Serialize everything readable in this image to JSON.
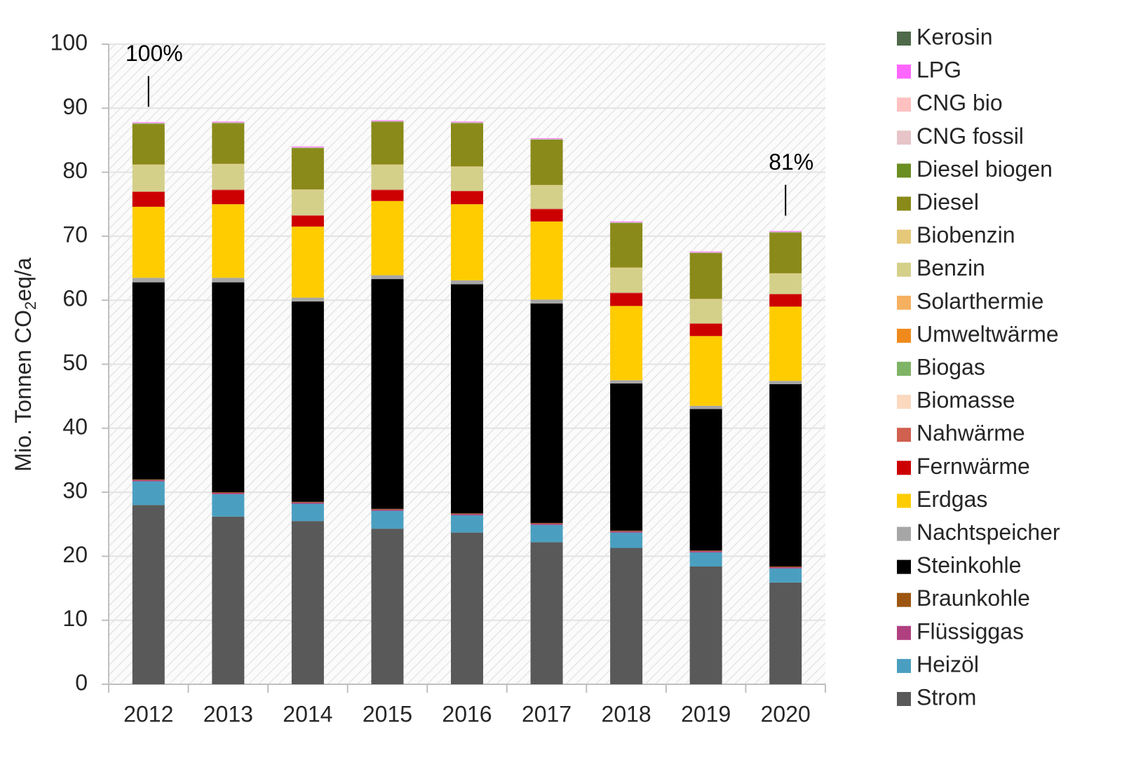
{
  "chart_data": {
    "type": "stacked_bar",
    "y_label": [
      "Mio. Tonnen CO",
      "2",
      "eq/a"
    ],
    "categories": [
      "2012",
      "2013",
      "2014",
      "2015",
      "2016",
      "2017",
      "2018",
      "2019",
      "2020"
    ],
    "ylim": [
      0,
      100
    ],
    "yticks": [
      0,
      10,
      20,
      30,
      40,
      50,
      60,
      70,
      80,
      90,
      100
    ],
    "grid": true,
    "legend": "right",
    "series": [
      {
        "name": "Strom",
        "color": "#595959",
        "values": [
          28.0,
          26.2,
          25.5,
          24.3,
          23.7,
          22.2,
          21.3,
          18.4,
          15.9
        ]
      },
      {
        "name": "Heizöl",
        "color": "#4a9fc0",
        "values": [
          3.7,
          3.5,
          2.7,
          2.8,
          2.7,
          2.7,
          2.4,
          2.2,
          2.2
        ]
      },
      {
        "name": "Flüssiggas",
        "color": "#b0407f",
        "values": [
          0.2,
          0.2,
          0.2,
          0.2,
          0.2,
          0.2,
          0.2,
          0.2,
          0.2
        ]
      },
      {
        "name": "Braunkohle",
        "color": "#9c5610",
        "values": [
          0.1,
          0.1,
          0.1,
          0.1,
          0.1,
          0.1,
          0.1,
          0.1,
          0.1
        ]
      },
      {
        "name": "Steinkohle",
        "color": "#000000",
        "values": [
          30.8,
          32.8,
          31.3,
          35.9,
          35.8,
          34.3,
          23.0,
          22.1,
          28.5
        ]
      },
      {
        "name": "Nachtspeicher",
        "color": "#a6a6a6",
        "values": [
          0.7,
          0.7,
          0.6,
          0.6,
          0.6,
          0.6,
          0.5,
          0.5,
          0.5
        ]
      },
      {
        "name": "Erdgas",
        "color": "#ffcc00",
        "values": [
          11.1,
          11.5,
          11.1,
          11.6,
          11.9,
          12.2,
          11.6,
          10.9,
          11.6
        ]
      },
      {
        "name": "Fernwärme",
        "color": "#cc0000",
        "values": [
          2.3,
          2.2,
          1.7,
          1.7,
          2.0,
          1.9,
          2.0,
          1.9,
          1.9
        ]
      },
      {
        "name": "Nahwärme",
        "color": "#d0604f",
        "values": [
          0.1,
          0.1,
          0.1,
          0.1,
          0.1,
          0.1,
          0.1,
          0.1,
          0.1
        ]
      },
      {
        "name": "Biomasse",
        "color": "#fbd9bf",
        "values": [
          0,
          0,
          0,
          0,
          0,
          0,
          0,
          0,
          0
        ]
      },
      {
        "name": "Biogas",
        "color": "#7fb466",
        "values": [
          0,
          0,
          0,
          0,
          0,
          0,
          0,
          0,
          0
        ]
      },
      {
        "name": "Umweltwärme",
        "color": "#f08a1c",
        "values": [
          0,
          0,
          0,
          0,
          0,
          0,
          0,
          0,
          0
        ]
      },
      {
        "name": "Solarthermie",
        "color": "#f5b060",
        "values": [
          0,
          0,
          0,
          0,
          0,
          0,
          0,
          0,
          0
        ]
      },
      {
        "name": "Benzin",
        "color": "#d4d08a",
        "values": [
          4.1,
          3.9,
          3.9,
          3.8,
          3.7,
          3.6,
          3.8,
          3.7,
          3.1
        ]
      },
      {
        "name": "Biobenzin",
        "color": "#e6c87a",
        "values": [
          0.1,
          0.1,
          0.1,
          0.1,
          0.1,
          0.1,
          0.1,
          0.1,
          0.1
        ]
      },
      {
        "name": "Diesel",
        "color": "#8a8a1a",
        "values": [
          6.3,
          6.3,
          6.4,
          6.6,
          6.7,
          7.0,
          6.9,
          7.1,
          6.3
        ]
      },
      {
        "name": "Diesel biogen",
        "color": "#6b8e23",
        "values": [
          0.1,
          0.1,
          0.1,
          0.1,
          0.1,
          0.1,
          0.1,
          0.1,
          0.1
        ]
      },
      {
        "name": "CNG fossil",
        "color": "#e6c4c8",
        "values": [
          0.1,
          0.1,
          0.1,
          0.1,
          0.1,
          0.1,
          0.1,
          0.1,
          0.1
        ]
      },
      {
        "name": "CNG bio",
        "color": "#ffc0c0",
        "values": [
          0,
          0,
          0,
          0,
          0,
          0,
          0,
          0,
          0
        ]
      },
      {
        "name": "LPG",
        "color": "#ff66ff",
        "values": [
          0.1,
          0.1,
          0.1,
          0.1,
          0.1,
          0.1,
          0.1,
          0.1,
          0.1
        ]
      },
      {
        "name": "Kerosin",
        "color": "#4f6a4a",
        "values": [
          0,
          0,
          0,
          0,
          0,
          0,
          0,
          0,
          0
        ]
      }
    ],
    "annotations": [
      {
        "text": "100%",
        "x": "2012"
      },
      {
        "text": "81%",
        "x": "2020"
      }
    ]
  }
}
